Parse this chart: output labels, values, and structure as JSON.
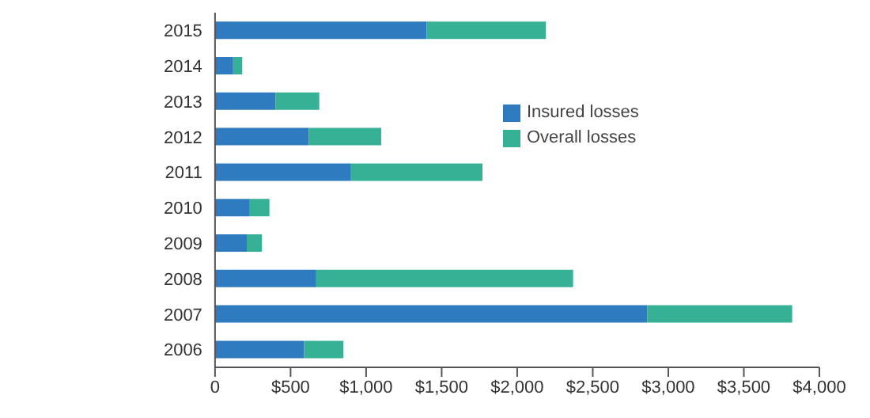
{
  "chart_data": {
    "type": "bar",
    "orientation": "horizontal",
    "stacked": true,
    "legend": "top right",
    "categories": [
      "2015",
      "2014",
      "2013",
      "2012",
      "2011",
      "2010",
      "2009",
      "2008",
      "2007",
      "2006"
    ],
    "series": [
      {
        "name": "Insured losses",
        "color": "#2f7bbf",
        "values": [
          1400,
          120,
          400,
          620,
          900,
          230,
          210,
          670,
          2860,
          590
        ]
      },
      {
        "name": "Overall losses",
        "color": "#36b196",
        "values": [
          790,
          60,
          290,
          480,
          870,
          130,
          100,
          1700,
          960,
          260
        ]
      }
    ],
    "xlim": [
      0,
      4000
    ],
    "xticks": [
      0,
      {
        "value": 500,
        "label": "$500"
      },
      {
        "value": 1000,
        "label": "$1,000"
      },
      {
        "value": 1500,
        "label": "$1,500"
      },
      {
        "value": 2000,
        "label": "$2,000"
      },
      {
        "value": 2500,
        "label": "$2,500"
      },
      {
        "value": 3000,
        "label": "$3,000"
      },
      {
        "value": 3500,
        "label": "$3,500"
      },
      {
        "value": 4000,
        "label": "$4,000"
      }
    ]
  }
}
